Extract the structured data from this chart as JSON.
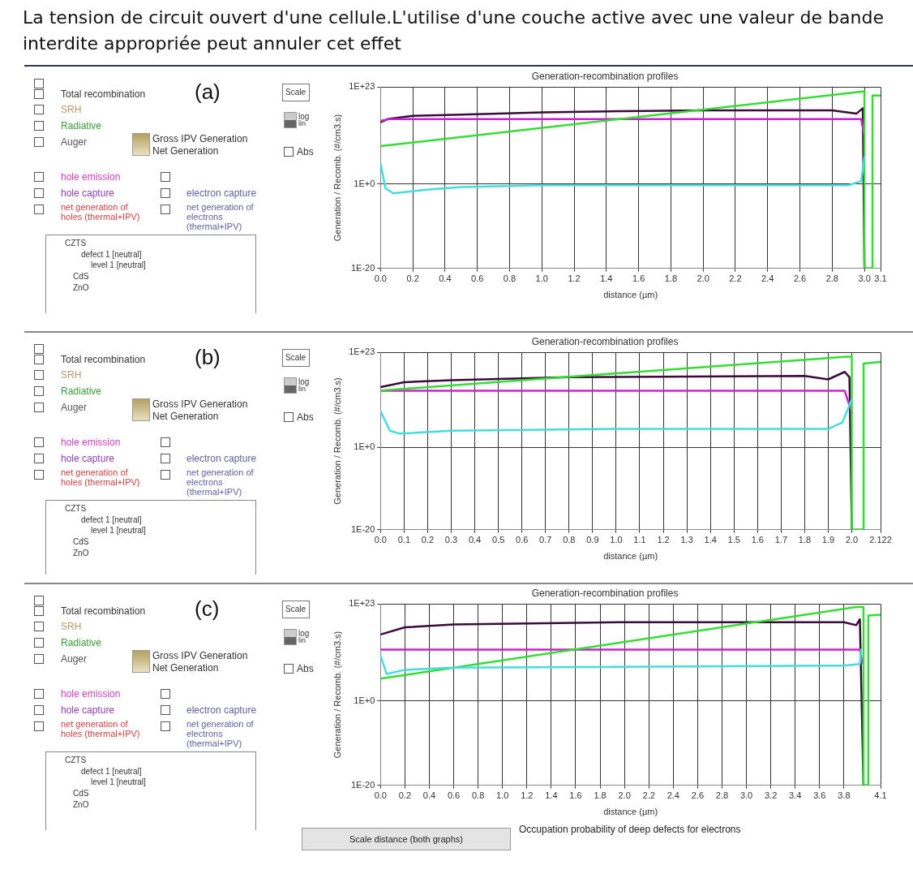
{
  "chart_data": [
    {
      "type": "other",
      "title": "La tension de circuit ouvert d'une cellule.L'utilise d'une couche active avec une valeur de bande interdite appropriée peut annuler cet effet",
      "annotations": [
        "(a)",
        "Total recombination",
        "SRH",
        "Radiative",
        "Auger",
        "Gross IPV Generation",
        "Net Generation",
        "hole emission",
        "hole capture",
        "net generation of holes (thermal+IPV)",
        "electron capture",
        "net generation of electrons (thermal+IPV)",
        "CZTS",
        "defect 1 [neutral]",
        "level 1 [neutral]",
        "CdS",
        "ZnO",
        "Scale",
        "log",
        "lin",
        "Abs"
      ]
    },
    {
      "type": "line",
      "title": "Generation-recombination profiles",
      "xlabel": "distance (µm)",
      "ylabel": "Generation / Recomb. (#/cm3.s)",
      "log": true,
      "grid": true,
      "xlim": [
        0,
        3.1
      ],
      "ylim": [
        1e-20,
        1e+23
      ],
      "xticks": [
        {
          "value": 0,
          "label": "0.0"
        },
        0.2,
        0.4,
        0.6,
        0.8,
        {
          "value": 1,
          "label": "1.0"
        },
        1.2,
        1.4,
        1.6,
        1.8,
        {
          "value": 2,
          "label": "2.0"
        },
        2.2,
        2.4,
        2.6,
        2.8,
        {
          "value": 3,
          "label": "3.0"
        },
        3.1
      ],
      "yticks": [
        {
          "value": 1e-20,
          "label": "1E-20"
        },
        {
          "value": 1,
          "label": "1E+0"
        },
        {
          "value": 1e+23,
          "label": "1E+23"
        }
      ],
      "series": [
        {
          "color": "#44dddd",
          "x": [
            0,
            0.03,
            0.08,
            0.3,
            0.5,
            1.0,
            2.0,
            2.9,
            2.98,
            3.0
          ],
          "values": [
            100000.0,
            0.1,
            0.006,
            0.05,
            0.2,
            0.5,
            0.5,
            0.5,
            5,
            3000000.0
          ]
        },
        {
          "color": "#33dd33",
          "x": [
            0,
            3.0,
            3.0,
            3.05,
            3.05,
            3.1
          ],
          "values": [
            1000000000.0,
            1e+22,
            1e-20,
            1e-20,
            1e+21,
            1e+21
          ]
        },
        {
          "color": "#cc22cc",
          "x": [
            0,
            0.05,
            2.98,
            3.0
          ],
          "values": [
            1000000000000000.0,
            2500000000000000.0,
            2500000000000000.0,
            300000000000.0
          ]
        },
        {
          "color": "#3a0a3a",
          "x": [
            0,
            0.05,
            0.2,
            0.5,
            1.0,
            1.5,
            2.0,
            2.5,
            2.8,
            2.95,
            2.99,
            3.0
          ],
          "values": [
            500000000000000.0,
            3000000000000000.0,
            1.5e+16,
            3e+16,
            1e+17,
            2e+17,
            3e+17,
            3e+17,
            3e+17,
            5e+16,
            1e+18,
            1e-20
          ]
        }
      ]
    },
    {
      "type": "other",
      "annotations": [
        "(b)",
        "Total recombination",
        "SRH",
        "Radiative",
        "Auger",
        "Gross IPV Generation",
        "Net Generation",
        "hole emission",
        "hole capture",
        "net generation of holes (thermal+IPV)",
        "electron capture",
        "net generation of electrons (thermal+IPV)",
        "CZTS",
        "defect 1 [neutral]",
        "level 1 [neutral]",
        "CdS",
        "ZnO",
        "Scale",
        "log",
        "lin",
        "Abs"
      ]
    },
    {
      "type": "line",
      "title": "Generation-recombination profiles",
      "xlabel": "distance (µm)",
      "ylabel": "Generation / Recomb. (#/cm3.s)",
      "log": true,
      "grid": true,
      "xlim": [
        0,
        2.122
      ],
      "ylim": [
        1e-20,
        1e+23
      ],
      "xticks": [
        {
          "value": 0,
          "label": "0.0"
        },
        0.1,
        0.2,
        0.3,
        0.4,
        0.5,
        0.6,
        0.7,
        0.8,
        0.9,
        {
          "value": 1,
          "label": "1.0"
        },
        1.1,
        1.2,
        1.3,
        1.4,
        1.5,
        1.6,
        1.7,
        1.8,
        1.9,
        {
          "value": 2,
          "label": "2.0"
        },
        2.122
      ],
      "yticks": [
        {
          "value": 1e-20,
          "label": "1E-20"
        },
        {
          "value": 1,
          "label": "1E+0"
        },
        {
          "value": 1e+23,
          "label": "1E+23"
        }
      ],
      "series": [
        {
          "color": "#44dddd",
          "x": [
            0,
            0.04,
            0.08,
            0.3,
            1.0,
            1.9,
            1.96,
            2.0
          ],
          "values": [
            600000000.0,
            10000.0,
            2000.0,
            10000.0,
            30000.0,
            30000.0,
            1000000.0,
            500000000000.0
          ]
        },
        {
          "color": "#33dd33",
          "x": [
            0,
            1.98,
            2.0,
            2.0,
            2.05,
            2.05,
            2.122
          ],
          "values": [
            60000000000000.0,
            1e+22,
            1e+22,
            1e-20,
            1e-20,
            2e+20,
            5e+20
          ]
        },
        {
          "color": "#cc22cc",
          "x": [
            0,
            1.97,
            2.0
          ],
          "values": [
            50000000000000.0,
            50000000000000.0,
            200000000.0
          ]
        },
        {
          "color": "#3a0a3a",
          "x": [
            0,
            0.1,
            0.3,
            0.8,
            1.8,
            1.9,
            1.97,
            1.99,
            2.0
          ],
          "values": [
            400000000000000.0,
            6000000000000000.0,
            2e+16,
            1e+17,
            2e+17,
            3e+16,
            2e+18,
            1e+17,
            1e-20
          ]
        }
      ]
    },
    {
      "type": "other",
      "annotations": [
        "(c)",
        "Total recombination",
        "SRH",
        "Radiative",
        "Auger",
        "Gross IPV Generation",
        "Net Generation",
        "hole emission",
        "hole capture",
        "net generation of holes (thermal+IPV)",
        "electron capture",
        "net generation of electrons (thermal+IPV)",
        "CZTS",
        "defect 1 [neutral]",
        "level 1 [neutral]",
        "CdS",
        "ZnO",
        "Scale",
        "log",
        "lin",
        "Abs",
        "Scale distance (both graphs)",
        "Occupation probability of deep defects for electrons"
      ]
    },
    {
      "type": "line",
      "title": "Generation-recombination profiles",
      "xlabel": "distance (µm)",
      "ylabel": "Generation / Recomb. (#/cm3.s)",
      "log": true,
      "grid": true,
      "xlim": [
        0,
        4.1
      ],
      "ylim": [
        1e-20,
        1e+23
      ],
      "xticks": [
        {
          "value": 0,
          "label": "0.0"
        },
        0.2,
        0.4,
        0.6,
        0.8,
        {
          "value": 1,
          "label": "1.0"
        },
        1.2,
        1.4,
        1.6,
        1.8,
        {
          "value": 2,
          "label": "2.0"
        },
        2.2,
        2.4,
        2.6,
        2.8,
        {
          "value": 3,
          "label": "3.0"
        },
        3.2,
        3.4,
        3.6,
        3.8,
        4.1
      ],
      "yticks": [
        {
          "value": 1e-20,
          "label": "1E-20"
        },
        {
          "value": 1,
          "label": "1E+0"
        },
        {
          "value": 1e+23,
          "label": "1E+23"
        }
      ],
      "series": [
        {
          "color": "#44dddd",
          "x": [
            0,
            0.05,
            0.2,
            0.6,
            3.8,
            3.93,
            3.94
          ],
          "values": [
            60000000000.0,
            2500000.0,
            25000000.0,
            80000000.0,
            250000000.0,
            600000000.0,
            1500000000000.0
          ]
        },
        {
          "color": "#33dd33",
          "x": [
            0,
            3.9,
            3.96,
            3.96,
            4.0,
            4.0,
            4.1
          ],
          "values": [
            200000.0,
            2e+22,
            2e+22,
            1e-20,
            1e-20,
            2e+20,
            3e+20
          ]
        },
        {
          "color": "#cc22cc",
          "x": [
            0,
            3.93,
            3.95
          ],
          "values": [
            1500000000000.0,
            1500000000000.0,
            1000000000.0
          ]
        },
        {
          "color": "#3a0a3a",
          "x": [
            0,
            0.2,
            0.6,
            2.0,
            3.8,
            3.9,
            3.93,
            3.96
          ],
          "values": [
            6000000000000000.0,
            3e+17,
            1.5e+18,
            5e+18,
            5e+18,
            1e+18,
            2.5e+19,
            1e-20
          ]
        }
      ]
    }
  ]
}
